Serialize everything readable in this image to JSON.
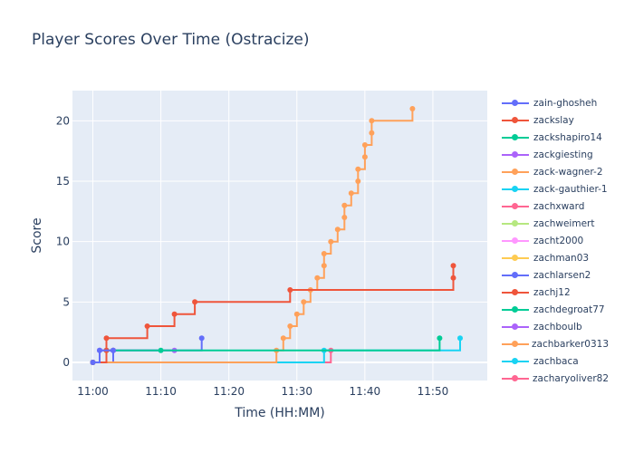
{
  "chart_data": {
    "type": "line",
    "title": "Player Scores Over Time (Ostracize)",
    "xlabel": "Time (HH:MM)",
    "ylabel": "Score",
    "x_ticks": [
      "11:00",
      "11:10",
      "11:20",
      "11:30",
      "11:40",
      "11:50"
    ],
    "y_ticks": [
      0,
      5,
      10,
      15,
      20
    ],
    "xlim": [
      "10:57",
      "11:58"
    ],
    "ylim": [
      -1.5,
      22.5
    ],
    "grid": true,
    "line_shape": "step",
    "legend_position": "right",
    "plot_bg": "#e5ecf6",
    "series": [
      {
        "name": "zain-ghosheh",
        "color": "#636efa",
        "points": [
          [
            "11:00",
            0
          ],
          [
            "11:01",
            1
          ],
          [
            "11:03",
            1
          ]
        ]
      },
      {
        "name": "zackslay",
        "color": "#ef553b",
        "points": [
          [
            "11:00",
            0
          ],
          [
            "11:02",
            1
          ],
          [
            "11:02",
            2
          ],
          [
            "11:08",
            3
          ],
          [
            "11:12",
            4
          ],
          [
            "11:15",
            5
          ],
          [
            "11:29",
            6
          ],
          [
            "11:53",
            7
          ],
          [
            "11:53",
            8
          ]
        ]
      },
      {
        "name": "zackshapiro14",
        "color": "#00cc96",
        "points": [
          [
            "11:00",
            0
          ],
          [
            "11:02",
            1
          ],
          [
            "11:10",
            1
          ],
          [
            "11:51",
            2
          ]
        ]
      },
      {
        "name": "zackgiesting",
        "color": "#ab63fa",
        "points": [
          [
            "11:00",
            0
          ],
          [
            "11:01",
            1
          ],
          [
            "11:12",
            1
          ]
        ]
      },
      {
        "name": "zack-wagner-2",
        "color": "#ffa15a",
        "points": [
          [
            "11:00",
            0
          ],
          [
            "11:27",
            1
          ],
          [
            "11:28",
            2
          ],
          [
            "11:29",
            3
          ],
          [
            "11:30",
            4
          ],
          [
            "11:31",
            5
          ],
          [
            "11:32",
            6
          ],
          [
            "11:33",
            7
          ],
          [
            "11:34",
            8
          ],
          [
            "11:34",
            9
          ],
          [
            "11:35",
            10
          ],
          [
            "11:36",
            11
          ],
          [
            "11:37",
            12
          ],
          [
            "11:37",
            13
          ],
          [
            "11:38",
            14
          ],
          [
            "11:39",
            15
          ],
          [
            "11:39",
            16
          ],
          [
            "11:40",
            17
          ],
          [
            "11:40",
            18
          ],
          [
            "11:41",
            19
          ],
          [
            "11:41",
            20
          ],
          [
            "11:47",
            21
          ]
        ]
      },
      {
        "name": "zack-gauthier-1",
        "color": "#19d3f3",
        "points": [
          [
            "11:00",
            0
          ],
          [
            "11:34",
            1
          ],
          [
            "11:54",
            2
          ]
        ]
      },
      {
        "name": "zachxward",
        "color": "#ff6692",
        "points": [
          [
            "11:00",
            0
          ],
          [
            "11:35",
            1
          ]
        ]
      },
      {
        "name": "zachweimert",
        "color": "#b6e880",
        "points": [
          [
            "11:00",
            0
          ]
        ]
      },
      {
        "name": "zacht2000",
        "color": "#ff97ff",
        "points": [
          [
            "11:00",
            0
          ]
        ]
      },
      {
        "name": "zachman03",
        "color": "#fecb52",
        "points": [
          [
            "11:00",
            0
          ]
        ]
      },
      {
        "name": "zachlarsen2",
        "color": "#636efa",
        "points": [
          [
            "11:00",
            0
          ],
          [
            "11:03",
            1
          ],
          [
            "11:16",
            2
          ]
        ]
      },
      {
        "name": "zachj12",
        "color": "#ef553b",
        "points": [
          [
            "11:00",
            0
          ],
          [
            "11:03",
            1
          ]
        ]
      },
      {
        "name": "zachdegroat77",
        "color": "#00cc96",
        "points": [
          [
            "11:00",
            0
          ]
        ]
      },
      {
        "name": "zachboulb",
        "color": "#ab63fa",
        "points": [
          [
            "11:00",
            0
          ]
        ]
      },
      {
        "name": "zachbarker0313",
        "color": "#ffa15a",
        "points": [
          [
            "11:00",
            0
          ]
        ]
      },
      {
        "name": "zachbaca",
        "color": "#19d3f3",
        "points": [
          [
            "11:00",
            0
          ]
        ]
      },
      {
        "name": "zacharyoliver82",
        "color": "#ff6692",
        "points": [
          [
            "11:00",
            0
          ]
        ]
      }
    ]
  }
}
